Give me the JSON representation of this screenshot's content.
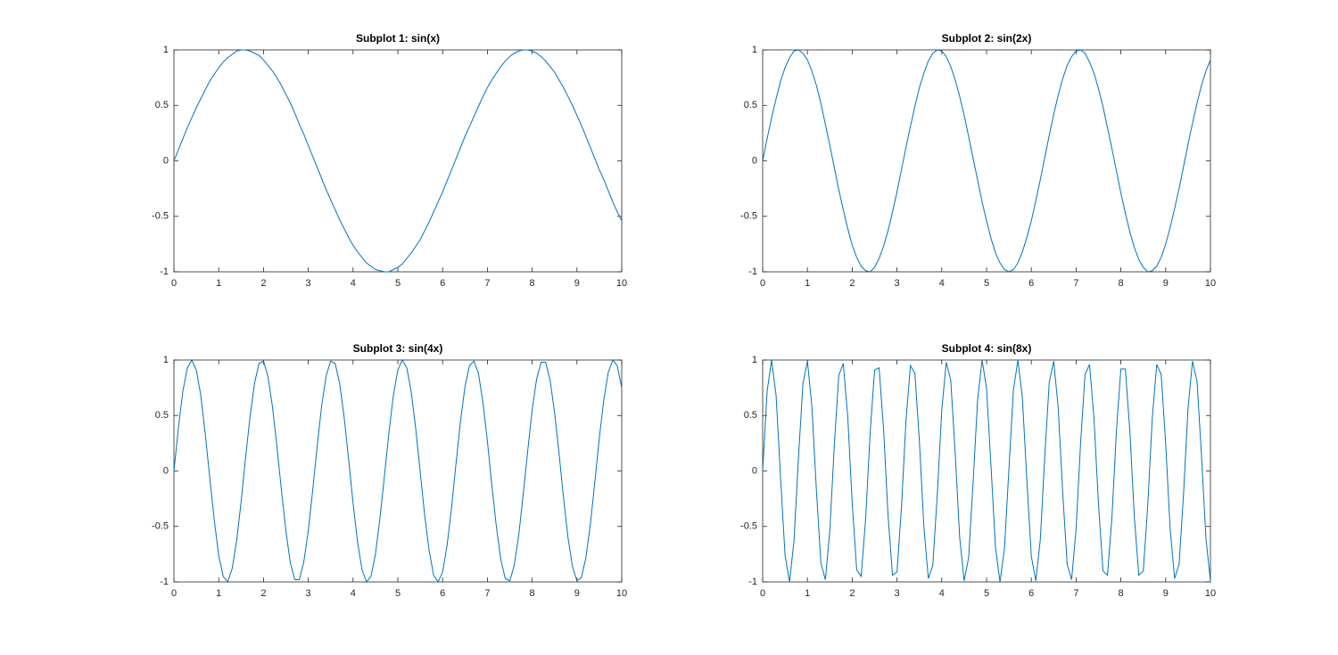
{
  "chart_data": [
    {
      "type": "line",
      "title": "Subplot 1: sin(x)",
      "x": [
        0,
        0.1,
        0.2,
        0.3,
        0.4,
        0.5,
        0.6,
        0.7,
        0.8,
        0.9,
        1,
        1.1,
        1.2,
        1.3,
        1.4,
        1.5,
        1.6,
        1.7,
        1.8,
        1.9,
        2,
        2.1,
        2.2,
        2.3,
        2.4,
        2.5,
        2.6,
        2.7,
        2.8,
        2.9,
        3,
        3.1,
        3.2,
        3.3,
        3.4,
        3.5,
        3.6,
        3.7,
        3.8,
        3.9,
        4,
        4.1,
        4.2,
        4.3,
        4.4,
        4.5,
        4.6,
        4.7,
        4.8,
        4.9,
        5,
        5.1,
        5.2,
        5.3,
        5.4,
        5.5,
        5.6,
        5.7,
        5.8,
        5.9,
        6,
        6.1,
        6.2,
        6.3,
        6.4,
        6.5,
        6.6,
        6.7,
        6.8,
        6.9,
        7,
        7.1,
        7.2,
        7.3,
        7.4,
        7.5,
        7.6,
        7.7,
        7.8,
        7.9,
        8,
        8.1,
        8.2,
        8.3,
        8.4,
        8.5,
        8.6,
        8.7,
        8.8,
        8.9,
        9,
        9.1,
        9.2,
        9.3,
        9.4,
        9.5,
        9.6,
        9.7,
        9.8,
        9.9,
        10
      ],
      "series": [
        {
          "color": "#0072bd",
          "values": [
            0,
            0.1,
            0.2,
            0.3,
            0.39,
            0.48,
            0.56,
            0.64,
            0.72,
            0.78,
            0.84,
            0.89,
            0.93,
            0.96,
            0.99,
            1,
            1,
            0.99,
            0.97,
            0.95,
            0.91,
            0.86,
            0.81,
            0.75,
            0.68,
            0.6,
            0.52,
            0.43,
            0.33,
            0.24,
            0.14,
            0.04,
            -0.06,
            -0.16,
            -0.26,
            -0.35,
            -0.44,
            -0.53,
            -0.61,
            -0.69,
            -0.76,
            -0.82,
            -0.87,
            -0.92,
            -0.95,
            -0.98,
            -0.99,
            -1,
            -1,
            -0.98,
            -0.96,
            -0.93,
            -0.88,
            -0.83,
            -0.77,
            -0.71,
            -0.63,
            -0.55,
            -0.46,
            -0.37,
            -0.28,
            -0.18,
            -0.08,
            0.02,
            0.12,
            0.22,
            0.31,
            0.4,
            0.49,
            0.58,
            0.66,
            0.73,
            0.79,
            0.85,
            0.9,
            0.94,
            0.97,
            0.99,
            1,
            1,
            0.99,
            0.97,
            0.94,
            0.9,
            0.85,
            0.8,
            0.73,
            0.66,
            0.58,
            0.5,
            0.41,
            0.32,
            0.22,
            0.12,
            0.02,
            -0.08,
            -0.17,
            -0.27,
            -0.37,
            -0.46,
            -0.54
          ]
        }
      ],
      "xlim": [
        0,
        10
      ],
      "ylim": [
        -1,
        1
      ],
      "xticks": [
        0,
        1,
        2,
        3,
        4,
        5,
        6,
        7,
        8,
        9,
        10
      ],
      "yticks": [
        -1,
        -0.5,
        0,
        0.5,
        1
      ]
    },
    {
      "type": "line",
      "title": "Subplot 2: sin(2x)",
      "x": [
        0,
        0.1,
        0.2,
        0.3,
        0.4,
        0.5,
        0.6,
        0.7,
        0.8,
        0.9,
        1,
        1.1,
        1.2,
        1.3,
        1.4,
        1.5,
        1.6,
        1.7,
        1.8,
        1.9,
        2,
        2.1,
        2.2,
        2.3,
        2.4,
        2.5,
        2.6,
        2.7,
        2.8,
        2.9,
        3,
        3.1,
        3.2,
        3.3,
        3.4,
        3.5,
        3.6,
        3.7,
        3.8,
        3.9,
        4,
        4.1,
        4.2,
        4.3,
        4.4,
        4.5,
        4.6,
        4.7,
        4.8,
        4.9,
        5,
        5.1,
        5.2,
        5.3,
        5.4,
        5.5,
        5.6,
        5.7,
        5.8,
        5.9,
        6,
        6.1,
        6.2,
        6.3,
        6.4,
        6.5,
        6.6,
        6.7,
        6.8,
        6.9,
        7,
        7.1,
        7.2,
        7.3,
        7.4,
        7.5,
        7.6,
        7.7,
        7.8,
        7.9,
        8,
        8.1,
        8.2,
        8.3,
        8.4,
        8.5,
        8.6,
        8.7,
        8.8,
        8.9,
        9,
        9.1,
        9.2,
        9.3,
        9.4,
        9.5,
        9.6,
        9.7,
        9.8,
        9.9,
        10
      ],
      "series": [
        {
          "color": "#0072bd",
          "values": [
            0,
            0.2,
            0.39,
            0.56,
            0.72,
            0.84,
            0.93,
            0.99,
            1,
            0.97,
            0.91,
            0.81,
            0.68,
            0.52,
            0.33,
            0.14,
            -0.06,
            -0.26,
            -0.44,
            -0.61,
            -0.76,
            -0.87,
            -0.95,
            -0.99,
            -1,
            -0.96,
            -0.88,
            -0.77,
            -0.63,
            -0.46,
            -0.28,
            -0.08,
            0.12,
            0.31,
            0.49,
            0.66,
            0.79,
            0.9,
            0.97,
            1,
            0.99,
            0.94,
            0.85,
            0.73,
            0.58,
            0.41,
            0.22,
            0.02,
            -0.17,
            -0.37,
            -0.54,
            -0.7,
            -0.83,
            -0.92,
            -0.98,
            -1,
            -0.98,
            -0.92,
            -0.82,
            -0.69,
            -0.54,
            -0.36,
            -0.17,
            0.03,
            0.23,
            0.42,
            0.59,
            0.74,
            0.86,
            0.94,
            0.99,
            1,
            0.97,
            0.89,
            0.79,
            0.65,
            0.49,
            0.3,
            0.11,
            -0.09,
            -0.29,
            -0.47,
            -0.64,
            -0.78,
            -0.89,
            -0.96,
            -1,
            -0.99,
            -0.95,
            -0.87,
            -0.75,
            -0.6,
            -0.43,
            -0.25,
            -0.05,
            0.15,
            0.34,
            0.52,
            0.68,
            0.81,
            0.91
          ]
        }
      ],
      "xlim": [
        0,
        10
      ],
      "ylim": [
        -1,
        1
      ],
      "xticks": [
        0,
        1,
        2,
        3,
        4,
        5,
        6,
        7,
        8,
        9,
        10
      ],
      "yticks": [
        -1,
        -0.5,
        0,
        0.5,
        1
      ]
    },
    {
      "type": "line",
      "title": "Subplot 3: sin(4x)",
      "x": [
        0,
        0.1,
        0.2,
        0.3,
        0.4,
        0.5,
        0.6,
        0.7,
        0.8,
        0.9,
        1,
        1.1,
        1.2,
        1.3,
        1.4,
        1.5,
        1.6,
        1.7,
        1.8,
        1.9,
        2,
        2.1,
        2.2,
        2.3,
        2.4,
        2.5,
        2.6,
        2.7,
        2.8,
        2.9,
        3,
        3.1,
        3.2,
        3.3,
        3.4,
        3.5,
        3.6,
        3.7,
        3.8,
        3.9,
        4,
        4.1,
        4.2,
        4.3,
        4.4,
        4.5,
        4.6,
        4.7,
        4.8,
        4.9,
        5,
        5.1,
        5.2,
        5.3,
        5.4,
        5.5,
        5.6,
        5.7,
        5.8,
        5.9,
        6,
        6.1,
        6.2,
        6.3,
        6.4,
        6.5,
        6.6,
        6.7,
        6.8,
        6.9,
        7,
        7.1,
        7.2,
        7.3,
        7.4,
        7.5,
        7.6,
        7.7,
        7.8,
        7.9,
        8,
        8.1,
        8.2,
        8.3,
        8.4,
        8.5,
        8.6,
        8.7,
        8.8,
        8.9,
        9,
        9.1,
        9.2,
        9.3,
        9.4,
        9.5,
        9.6,
        9.7,
        9.8,
        9.9,
        10
      ],
      "series": [
        {
          "color": "#0072bd",
          "values": [
            0,
            0.39,
            0.72,
            0.93,
            1,
            0.91,
            0.68,
            0.33,
            -0.06,
            -0.44,
            -0.76,
            -0.95,
            -1,
            -0.88,
            -0.63,
            -0.28,
            0.12,
            0.49,
            0.79,
            0.97,
            0.99,
            0.85,
            0.58,
            0.22,
            -0.17,
            -0.54,
            -0.83,
            -0.98,
            -0.98,
            -0.82,
            -0.54,
            -0.17,
            0.23,
            0.59,
            0.86,
            0.99,
            0.97,
            0.79,
            0.49,
            0.11,
            -0.29,
            -0.64,
            -0.89,
            -1,
            -0.95,
            -0.75,
            -0.43,
            -0.05,
            0.34,
            0.68,
            0.91,
            1,
            0.93,
            0.71,
            0.38,
            -0.01,
            -0.4,
            -0.72,
            -0.94,
            -1,
            -0.91,
            -0.67,
            -0.33,
            0.07,
            0.45,
            0.76,
            0.95,
            0.99,
            0.88,
            0.62,
            0.27,
            -0.13,
            -0.5,
            -0.8,
            -0.97,
            -0.99,
            -0.85,
            -0.58,
            -0.21,
            0.18,
            0.55,
            0.83,
            0.98,
            0.98,
            0.82,
            0.53,
            0.16,
            -0.24,
            -0.6,
            -0.86,
            -0.99,
            -0.96,
            -0.78,
            -0.48,
            -0.1,
            0.3,
            0.64,
            0.89,
            1,
            0.95,
            0.75
          ]
        }
      ],
      "xlim": [
        0,
        10
      ],
      "ylim": [
        -1,
        1
      ],
      "xticks": [
        0,
        1,
        2,
        3,
        4,
        5,
        6,
        7,
        8,
        9,
        10
      ],
      "yticks": [
        -1,
        -0.5,
        0,
        0.5,
        1
      ]
    },
    {
      "type": "line",
      "title": "Subplot 4: sin(8x)",
      "x": [
        0,
        0.1,
        0.2,
        0.3,
        0.4,
        0.5,
        0.6,
        0.7,
        0.8,
        0.9,
        1,
        1.1,
        1.2,
        1.3,
        1.4,
        1.5,
        1.6,
        1.7,
        1.8,
        1.9,
        2,
        2.1,
        2.2,
        2.3,
        2.4,
        2.5,
        2.6,
        2.7,
        2.8,
        2.9,
        3,
        3.1,
        3.2,
        3.3,
        3.4,
        3.5,
        3.6,
        3.7,
        3.8,
        3.9,
        4,
        4.1,
        4.2,
        4.3,
        4.4,
        4.5,
        4.6,
        4.7,
        4.8,
        4.9,
        5,
        5.1,
        5.2,
        5.3,
        5.4,
        5.5,
        5.6,
        5.7,
        5.8,
        5.9,
        6,
        6.1,
        6.2,
        6.3,
        6.4,
        6.5,
        6.6,
        6.7,
        6.8,
        6.9,
        7,
        7.1,
        7.2,
        7.3,
        7.4,
        7.5,
        7.6,
        7.7,
        7.8,
        7.9,
        8,
        8.1,
        8.2,
        8.3,
        8.4,
        8.5,
        8.6,
        8.7,
        8.8,
        8.9,
        9,
        9.1,
        9.2,
        9.3,
        9.4,
        9.5,
        9.6,
        9.7,
        9.8,
        9.9,
        10
      ],
      "series": [
        {
          "color": "#0072bd",
          "values": [
            0,
            0.72,
            1,
            0.68,
            -0.06,
            -0.76,
            -1,
            -0.63,
            0.12,
            0.79,
            0.99,
            0.58,
            -0.17,
            -0.83,
            -0.98,
            -0.54,
            0.23,
            0.86,
            0.97,
            0.49,
            -0.29,
            -0.89,
            -0.95,
            -0.43,
            0.34,
            0.91,
            0.93,
            0.38,
            -0.4,
            -0.94,
            -0.91,
            -0.33,
            0.45,
            0.95,
            0.88,
            0.27,
            -0.5,
            -0.97,
            -0.85,
            -0.21,
            0.55,
            0.98,
            0.82,
            0.16,
            -0.6,
            -0.99,
            -0.78,
            -0.1,
            0.64,
            1,
            0.75,
            0.04,
            -0.69,
            -1,
            -0.7,
            0.02,
            0.73,
            1,
            0.66,
            -0.08,
            -0.77,
            -0.99,
            -0.62,
            0.13,
            0.8,
            0.99,
            0.57,
            -0.19,
            -0.84,
            -0.98,
            -0.52,
            0.25,
            0.87,
            0.96,
            0.47,
            -0.3,
            -0.9,
            -0.94,
            -0.42,
            0.36,
            0.92,
            0.92,
            0.36,
            -0.41,
            -0.94,
            -0.9,
            -0.31,
            0.47,
            0.96,
            0.87,
            0.25,
            -0.52,
            -0.97,
            -0.84,
            -0.2,
            0.57,
            0.99,
            0.81,
            0.14,
            -0.61,
            -0.99
          ]
        }
      ],
      "xlim": [
        0,
        10
      ],
      "ylim": [
        -1,
        1
      ],
      "xticks": [
        0,
        1,
        2,
        3,
        4,
        5,
        6,
        7,
        8,
        9,
        10
      ],
      "yticks": [
        -1,
        -0.5,
        0,
        0.5,
        1
      ]
    }
  ]
}
